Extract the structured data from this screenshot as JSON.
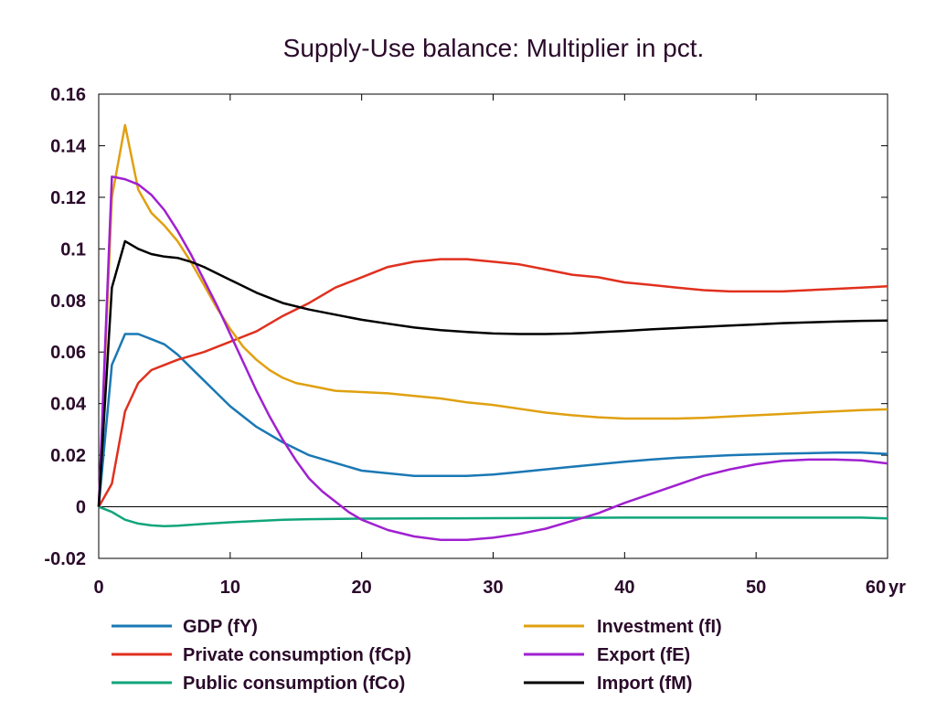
{
  "chart_data": {
    "type": "line",
    "title": "Supply-Use balance: Multiplier in pct.",
    "xlabel": "",
    "ylabel": "",
    "x_unit_label": "yr",
    "xlim": [
      0,
      60
    ],
    "ylim": [
      -0.02,
      0.16
    ],
    "xticks": [
      0,
      10,
      20,
      30,
      40,
      50,
      60
    ],
    "xtick_labels": [
      "0",
      "10",
      "20",
      "30",
      "40",
      "50",
      "60"
    ],
    "yticks": [
      0.16,
      0.14,
      0.12,
      0.1,
      0.08,
      0.06,
      0.04,
      0.02,
      0,
      -0.02
    ],
    "ytick_labels": [
      "0.16",
      "0.14",
      "0.12",
      "0.1",
      "0.08",
      "0.06",
      "0.04",
      "0.02",
      "0",
      "-0.02"
    ],
    "grid": false,
    "zero_line": true,
    "legend_position": "bottom",
    "series": [
      {
        "name": "GDP (fY)",
        "color": "#1a78b4",
        "points": [
          [
            0,
            0
          ],
          [
            1,
            0.055
          ],
          [
            2,
            0.067
          ],
          [
            3,
            0.067
          ],
          [
            4,
            0.065
          ],
          [
            5,
            0.063
          ],
          [
            6,
            0.059
          ],
          [
            7,
            0.054
          ],
          [
            8,
            0.049
          ],
          [
            9,
            0.044
          ],
          [
            10,
            0.039
          ],
          [
            12,
            0.031
          ],
          [
            14,
            0.025
          ],
          [
            16,
            0.02
          ],
          [
            18,
            0.017
          ],
          [
            20,
            0.014
          ],
          [
            22,
            0.013
          ],
          [
            24,
            0.012
          ],
          [
            26,
            0.012
          ],
          [
            28,
            0.012
          ],
          [
            30,
            0.0125
          ],
          [
            32,
            0.0135
          ],
          [
            34,
            0.0145
          ],
          [
            36,
            0.0155
          ],
          [
            38,
            0.0165
          ],
          [
            40,
            0.0175
          ],
          [
            42,
            0.0183
          ],
          [
            44,
            0.019
          ],
          [
            46,
            0.0195
          ],
          [
            48,
            0.02
          ],
          [
            50,
            0.0203
          ],
          [
            52,
            0.0206
          ],
          [
            54,
            0.0208
          ],
          [
            56,
            0.021
          ],
          [
            58,
            0.021
          ],
          [
            60,
            0.0205
          ]
        ]
      },
      {
        "name": "Private consumption (fCp)",
        "color": "#e0301e",
        "points": [
          [
            0,
            0
          ],
          [
            1,
            0.009
          ],
          [
            2,
            0.037
          ],
          [
            3,
            0.048
          ],
          [
            4,
            0.053
          ],
          [
            5,
            0.055
          ],
          [
            6,
            0.057
          ],
          [
            8,
            0.06
          ],
          [
            10,
            0.064
          ],
          [
            12,
            0.068
          ],
          [
            14,
            0.074
          ],
          [
            16,
            0.079
          ],
          [
            18,
            0.085
          ],
          [
            20,
            0.089
          ],
          [
            22,
            0.093
          ],
          [
            24,
            0.095
          ],
          [
            26,
            0.096
          ],
          [
            28,
            0.096
          ],
          [
            30,
            0.095
          ],
          [
            32,
            0.094
          ],
          [
            34,
            0.092
          ],
          [
            36,
            0.09
          ],
          [
            38,
            0.089
          ],
          [
            40,
            0.087
          ],
          [
            42,
            0.086
          ],
          [
            44,
            0.085
          ],
          [
            46,
            0.084
          ],
          [
            48,
            0.0835
          ],
          [
            50,
            0.0835
          ],
          [
            52,
            0.0835
          ],
          [
            54,
            0.084
          ],
          [
            56,
            0.0845
          ],
          [
            58,
            0.085
          ],
          [
            60,
            0.0855
          ]
        ]
      },
      {
        "name": "Public consumption (fCo)",
        "color": "#10a57a",
        "points": [
          [
            0,
            0
          ],
          [
            1,
            -0.002
          ],
          [
            2,
            -0.005
          ],
          [
            3,
            -0.0065
          ],
          [
            4,
            -0.0072
          ],
          [
            5,
            -0.0075
          ],
          [
            6,
            -0.0073
          ],
          [
            8,
            -0.0066
          ],
          [
            10,
            -0.006
          ],
          [
            12,
            -0.0055
          ],
          [
            14,
            -0.005
          ],
          [
            16,
            -0.0048
          ],
          [
            20,
            -0.0046
          ],
          [
            25,
            -0.0045
          ],
          [
            30,
            -0.0044
          ],
          [
            35,
            -0.0043
          ],
          [
            40,
            -0.0042
          ],
          [
            45,
            -0.0042
          ],
          [
            50,
            -0.0042
          ],
          [
            55,
            -0.0042
          ],
          [
            58,
            -0.0042
          ],
          [
            60,
            -0.0045
          ]
        ]
      },
      {
        "name": "Investment (fI)",
        "color": "#e0a010",
        "points": [
          [
            0,
            0
          ],
          [
            1,
            0.12
          ],
          [
            2,
            0.148
          ],
          [
            3,
            0.123
          ],
          [
            4,
            0.114
          ],
          [
            5,
            0.109
          ],
          [
            6,
            0.103
          ],
          [
            7,
            0.095
          ],
          [
            8,
            0.086
          ],
          [
            9,
            0.077
          ],
          [
            10,
            0.069
          ],
          [
            11,
            0.062
          ],
          [
            12,
            0.057
          ],
          [
            13,
            0.053
          ],
          [
            14,
            0.05
          ],
          [
            15,
            0.048
          ],
          [
            16,
            0.047
          ],
          [
            18,
            0.045
          ],
          [
            20,
            0.0445
          ],
          [
            22,
            0.044
          ],
          [
            24,
            0.043
          ],
          [
            26,
            0.042
          ],
          [
            28,
            0.0405
          ],
          [
            30,
            0.0395
          ],
          [
            32,
            0.038
          ],
          [
            34,
            0.0365
          ],
          [
            36,
            0.0355
          ],
          [
            38,
            0.0347
          ],
          [
            40,
            0.0342
          ],
          [
            42,
            0.0342
          ],
          [
            44,
            0.0342
          ],
          [
            46,
            0.0345
          ],
          [
            48,
            0.035
          ],
          [
            50,
            0.0355
          ],
          [
            52,
            0.036
          ],
          [
            54,
            0.0365
          ],
          [
            56,
            0.037
          ],
          [
            58,
            0.0375
          ],
          [
            60,
            0.0378
          ]
        ]
      },
      {
        "name": "Export (fE)",
        "color": "#a020d0",
        "points": [
          [
            0,
            0
          ],
          [
            1,
            0.128
          ],
          [
            2,
            0.127
          ],
          [
            3,
            0.125
          ],
          [
            4,
            0.121
          ],
          [
            5,
            0.115
          ],
          [
            6,
            0.107
          ],
          [
            7,
            0.098
          ],
          [
            8,
            0.088
          ],
          [
            9,
            0.078
          ],
          [
            10,
            0.067
          ],
          [
            11,
            0.056
          ],
          [
            12,
            0.045
          ],
          [
            13,
            0.035
          ],
          [
            14,
            0.026
          ],
          [
            15,
            0.018
          ],
          [
            16,
            0.011
          ],
          [
            17,
            0.006
          ],
          [
            18,
            0.002
          ],
          [
            19,
            -0.002
          ],
          [
            20,
            -0.005
          ],
          [
            22,
            -0.009
          ],
          [
            24,
            -0.0115
          ],
          [
            26,
            -0.0128
          ],
          [
            28,
            -0.0128
          ],
          [
            30,
            -0.012
          ],
          [
            32,
            -0.0105
          ],
          [
            34,
            -0.0085
          ],
          [
            36,
            -0.0055
          ],
          [
            38,
            -0.0025
          ],
          [
            40,
            0.0015
          ],
          [
            42,
            0.005
          ],
          [
            44,
            0.0085
          ],
          [
            46,
            0.012
          ],
          [
            48,
            0.0145
          ],
          [
            50,
            0.0165
          ],
          [
            52,
            0.0178
          ],
          [
            54,
            0.0183
          ],
          [
            56,
            0.0183
          ],
          [
            58,
            0.018
          ],
          [
            60,
            0.0168
          ]
        ]
      },
      {
        "name": "Import (fM)",
        "color": "#000000",
        "points": [
          [
            0,
            0
          ],
          [
            1,
            0.085
          ],
          [
            2,
            0.103
          ],
          [
            3,
            0.1
          ],
          [
            4,
            0.098
          ],
          [
            5,
            0.097
          ],
          [
            6,
            0.0965
          ],
          [
            7,
            0.095
          ],
          [
            8,
            0.093
          ],
          [
            10,
            0.088
          ],
          [
            12,
            0.083
          ],
          [
            14,
            0.079
          ],
          [
            16,
            0.0765
          ],
          [
            18,
            0.0745
          ],
          [
            20,
            0.0725
          ],
          [
            22,
            0.071
          ],
          [
            24,
            0.0695
          ],
          [
            26,
            0.0685
          ],
          [
            28,
            0.0678
          ],
          [
            30,
            0.0672
          ],
          [
            32,
            0.067
          ],
          [
            34,
            0.067
          ],
          [
            36,
            0.0672
          ],
          [
            38,
            0.0677
          ],
          [
            40,
            0.0682
          ],
          [
            42,
            0.0688
          ],
          [
            44,
            0.0693
          ],
          [
            46,
            0.0698
          ],
          [
            48,
            0.0703
          ],
          [
            50,
            0.0707
          ],
          [
            52,
            0.0712
          ],
          [
            54,
            0.0715
          ],
          [
            56,
            0.0718
          ],
          [
            58,
            0.0721
          ],
          [
            60,
            0.0722
          ]
        ]
      }
    ]
  }
}
